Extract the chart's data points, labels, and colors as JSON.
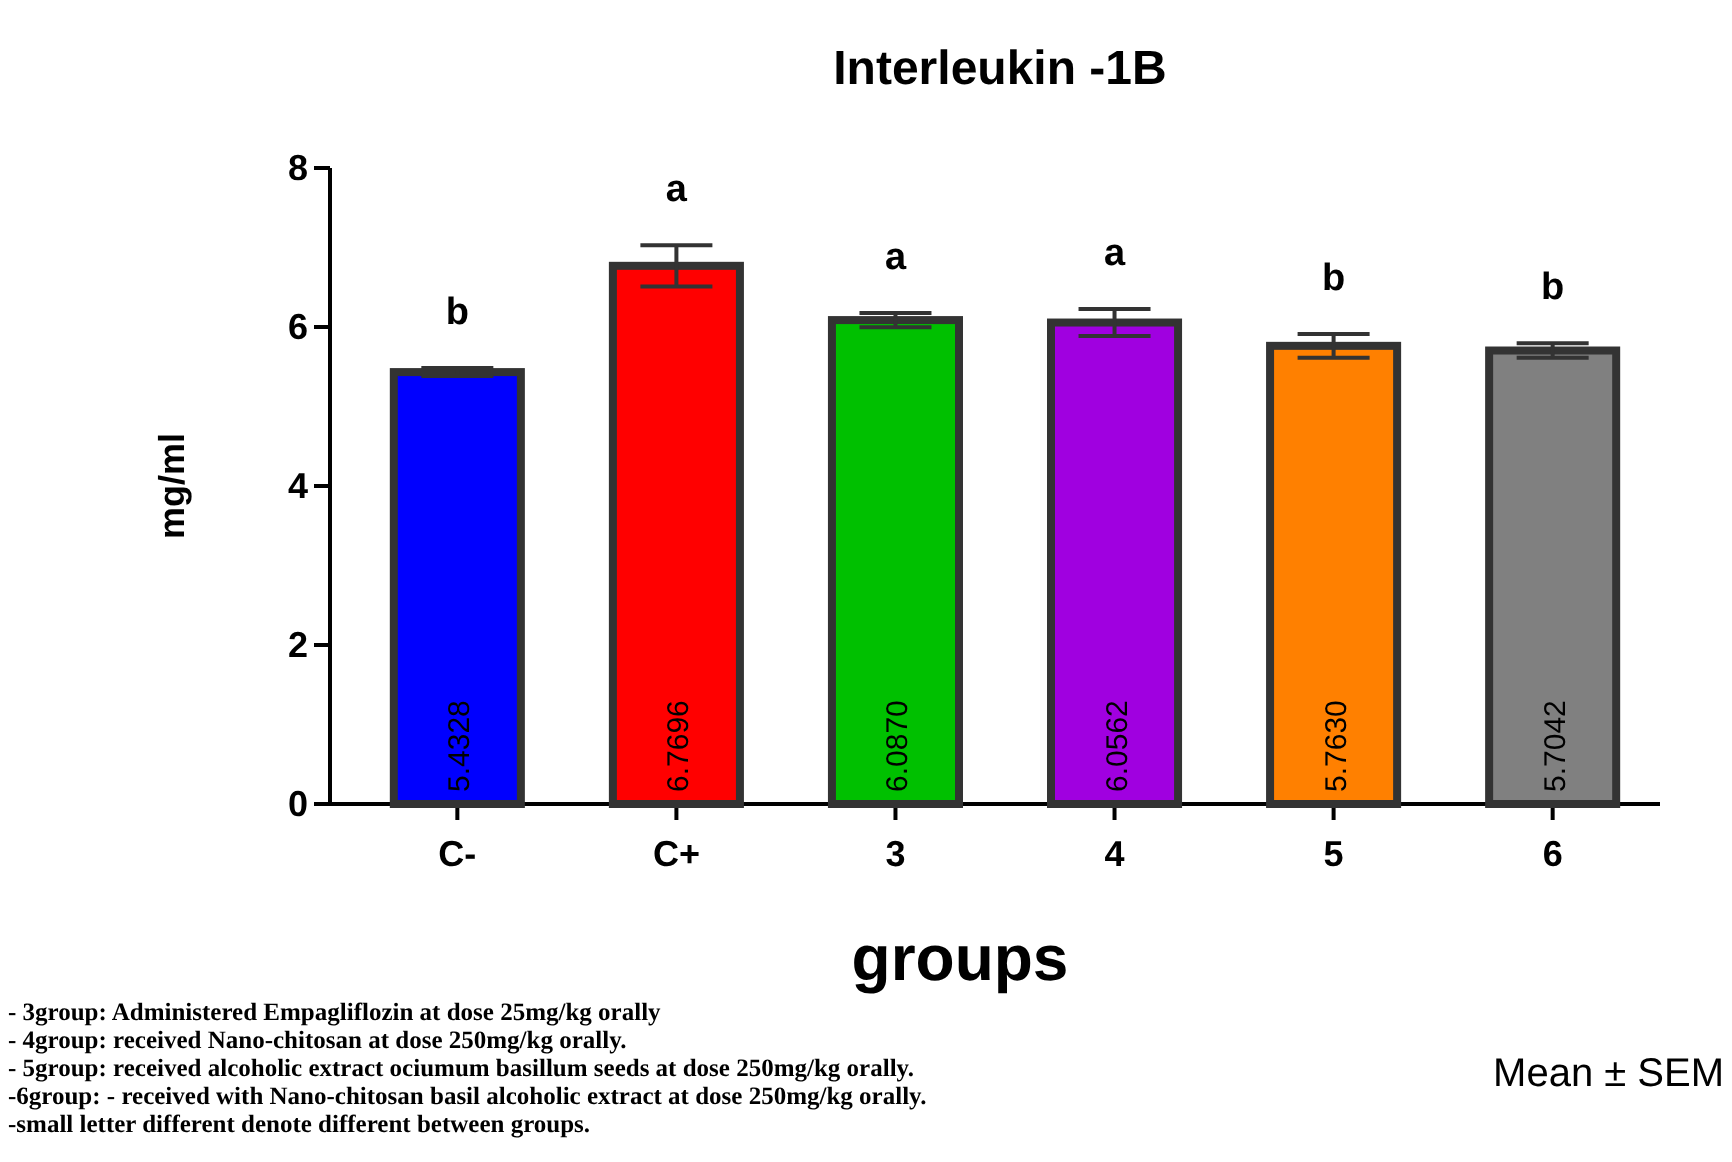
{
  "chart_data": {
    "type": "bar",
    "title": "Interleukin -1B",
    "xlabel": "groups",
    "ylabel": "mg/ml",
    "categories": [
      "C-",
      "C+",
      "3",
      "4",
      "5",
      "6"
    ],
    "values": [
      5.4328,
      6.7696,
      6.087,
      6.0562,
      5.763,
      5.7042
    ],
    "value_labels": [
      "5.4328",
      "6.7696",
      "6.0870",
      "6.0562",
      "5.7630",
      "5.7042"
    ],
    "colors": [
      "#0000ff",
      "#ff0000",
      "#00c000",
      "#a000e0",
      "#ff8000",
      "#808080"
    ],
    "errors": [
      0.05,
      0.26,
      0.09,
      0.17,
      0.15,
      0.09
    ],
    "ylim": [
      0,
      8
    ],
    "yticks": [
      0,
      2,
      4,
      6,
      8
    ],
    "grid": false,
    "annotations": [
      "b",
      "a",
      "a",
      "a",
      "b",
      "b",
      "- 3group: Administered Empagliflozin at dose 25mg/kg orally",
      "- 4group: received Nano-chitosan at dose 250mg/kg orally.",
      "- 5group: received alcoholic extract ociumum basillum seeds at dose 250mg/kg orally.",
      "-6group: - received with Nano-chitosan basil alcoholic extract at dose 250mg/kg orally.",
      "-small letter different denote different between groups.",
      "Mean ± SEM"
    ]
  }
}
